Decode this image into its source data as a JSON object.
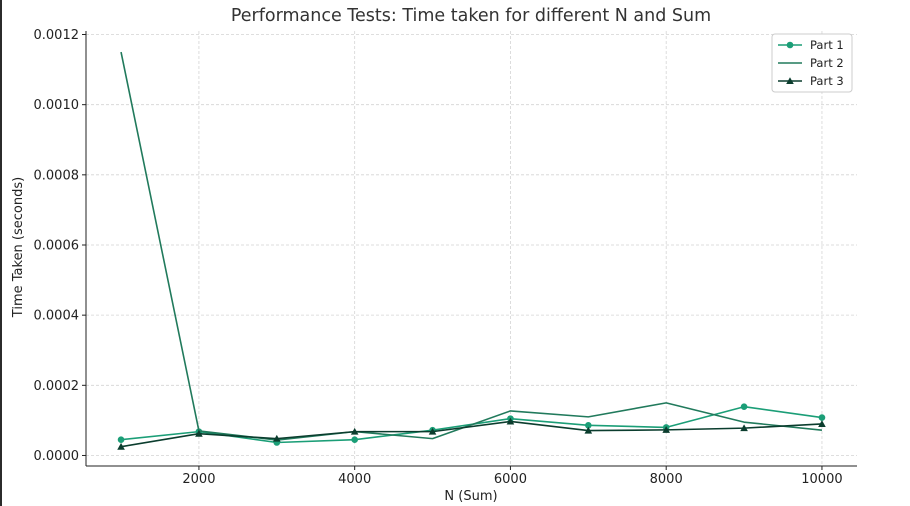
{
  "chart_data": {
    "type": "line",
    "title": "Performance Tests: Time taken for different N and Sum",
    "xlabel": "N (Sum)",
    "ylabel": "Time Taken (seconds)",
    "xlim": [
      550,
      10450
    ],
    "ylim": [
      -3e-05,
      0.00121
    ],
    "x_ticks": [
      2000,
      4000,
      6000,
      8000,
      10000
    ],
    "x_tick_labels": [
      "2000",
      "4000",
      "6000",
      "8000",
      "10000"
    ],
    "y_ticks": [
      0,
      0.0002,
      0.0004,
      0.0006,
      0.0008,
      0.001,
      0.0012
    ],
    "y_tick_labels": [
      "0.0000",
      "0.0002",
      "0.0004",
      "0.0006",
      "0.0008",
      "0.0010",
      "0.0012"
    ],
    "grid": true,
    "legend_position": "top-right",
    "x": [
      1000,
      2000,
      3000,
      4000,
      5000,
      6000,
      7000,
      8000,
      9000,
      10000
    ],
    "series": [
      {
        "name": "Part 1",
        "color": "#1b9e77",
        "marker": "circle",
        "values": [
          4.5e-05,
          6.8e-05,
          3.7e-05,
          4.5e-05,
          7.2e-05,
          0.000105,
          8.6e-05,
          8e-05,
          0.000139,
          0.000108
        ]
      },
      {
        "name": "Part 2",
        "color": "#217a5c",
        "marker": "none",
        "values": [
          0.00115,
          7e-05,
          4.4e-05,
          6.8e-05,
          4.8e-05,
          0.000127,
          0.00011,
          0.00015,
          9.5e-05,
          7.2e-05
        ]
      },
      {
        "name": "Part 3",
        "color": "#0b3d2e",
        "marker": "triangle",
        "values": [
          2.5e-05,
          6.2e-05,
          4.8e-05,
          6.8e-05,
          6.8e-05,
          9.7e-05,
          7.1e-05,
          7.3e-05,
          7.8e-05,
          9e-05
        ]
      }
    ]
  }
}
